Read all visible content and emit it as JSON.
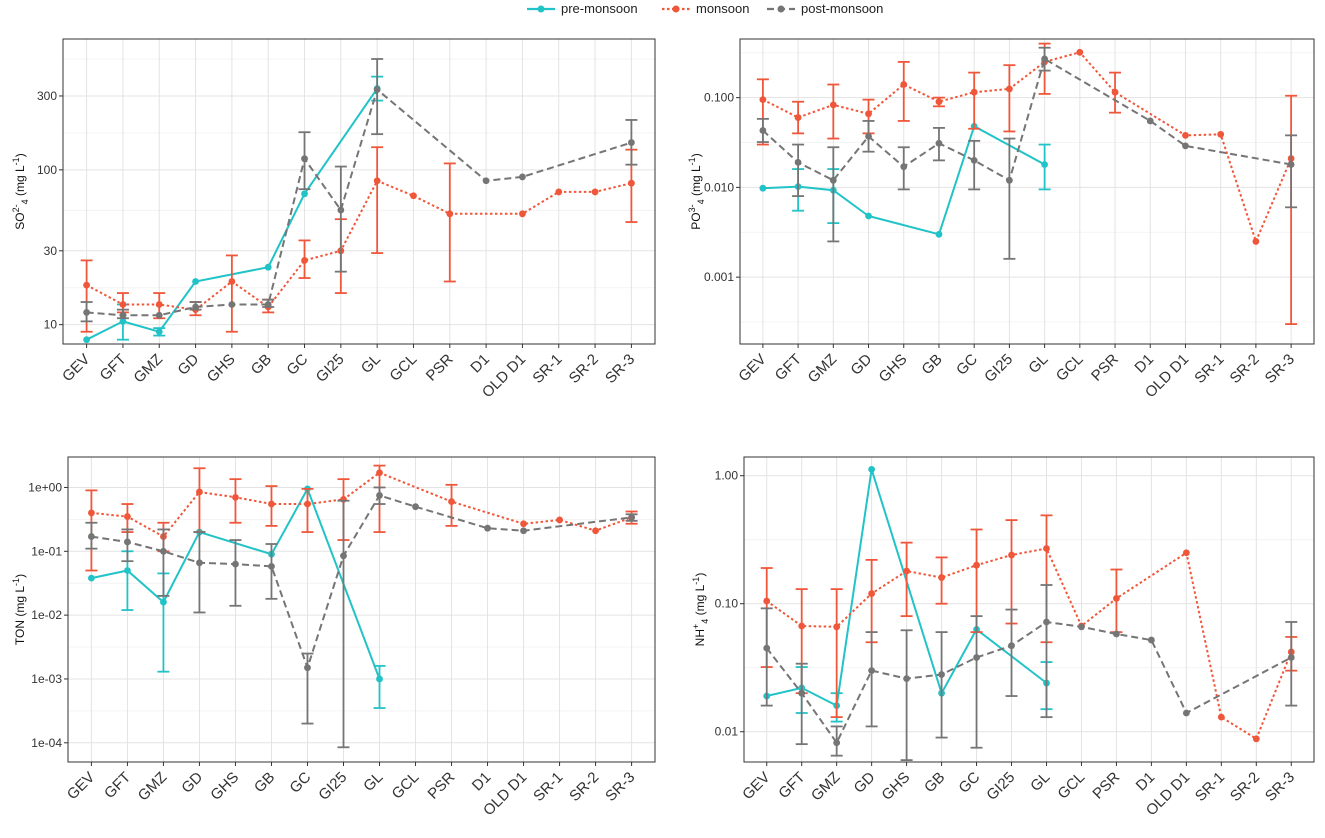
{
  "legend": {
    "series": [
      {
        "key": "pre",
        "name": "pre-monsoon",
        "color": "#22c3c7"
      },
      {
        "key": "mon",
        "name": "monsoon",
        "color": "#f0573a"
      },
      {
        "key": "post",
        "name": "post-monsoon",
        "color": "#757575"
      }
    ]
  },
  "chart_data": [
    {
      "type": "line",
      "panel": "top-left",
      "ylabel_main": "SO",
      "ylabel_sup": "2-",
      "ylabel_sub": "4",
      "ylabel_unit": " (mg L",
      "ylabel_unit_sup": "-1",
      "ylabel_end": ")",
      "yscale": "log",
      "ylim": [
        7.5,
        700
      ],
      "yticks": [
        10,
        30,
        100,
        300
      ],
      "ytick_labels": [
        "10",
        "30",
        "100",
        "300"
      ],
      "categories": [
        "GEV",
        "GFT",
        "GMZ",
        "GD",
        "GHS",
        "GB",
        "GC",
        "GI25",
        "GL",
        "GCL",
        "PSR",
        "D1",
        "OLD D1",
        "SR-1",
        "SR-2",
        "SR-3"
      ],
      "series": [
        {
          "key": "pre",
          "name": "pre-monsoon",
          "style": "solid",
          "values": [
            8,
            10.5,
            9,
            19,
            null,
            23.5,
            70,
            null,
            335,
            null,
            null,
            null,
            null,
            null,
            null,
            null
          ],
          "err": [
            null,
            [
              8,
              13.5
            ],
            [
              8.5,
              9.5
            ],
            null,
            null,
            null,
            null,
            null,
            [
              280,
              400
            ],
            null,
            null,
            null,
            null,
            null,
            null,
            null
          ]
        },
        {
          "key": "mon",
          "name": "monsoon",
          "style": "dotted",
          "values": [
            18,
            13.5,
            13.5,
            12.5,
            19,
            13,
            26,
            30,
            85,
            68,
            52,
            null,
            52,
            72,
            72,
            82
          ],
          "err": [
            [
              9,
              26
            ],
            [
              12,
              16
            ],
            [
              11,
              16
            ],
            [
              11.5,
              14
            ],
            [
              9,
              28
            ],
            [
              12,
              14.5
            ],
            [
              20,
              35
            ],
            [
              16,
              48
            ],
            [
              29,
              140
            ],
            null,
            [
              19,
              110
            ],
            null,
            null,
            null,
            null,
            [
              46,
              135
            ]
          ]
        },
        {
          "key": "post",
          "name": "post-monsoon",
          "style": "dashed",
          "values": [
            12,
            11.5,
            11.5,
            13,
            13.5,
            13.5,
            118,
            55,
            330,
            null,
            null,
            85,
            90,
            null,
            null,
            150
          ],
          "err": [
            [
              10.5,
              14
            ],
            [
              11,
              12.5
            ],
            null,
            [
              12.5,
              14
            ],
            null,
            [
              13,
              14.5
            ],
            [
              75,
              175
            ],
            [
              22,
              105
            ],
            [
              170,
              520
            ],
            null,
            null,
            null,
            null,
            null,
            null,
            [
              108,
              210
            ]
          ]
        }
      ]
    },
    {
      "type": "line",
      "panel": "top-right",
      "ylabel_main": "PO",
      "ylabel_sup": "3-",
      "ylabel_sub": "4",
      "ylabel_unit": " (mg L",
      "ylabel_unit_sup": "-1",
      "ylabel_end": ")",
      "yscale": "log",
      "ylim": [
        0.00018,
        0.45
      ],
      "yticks": [
        0.001,
        0.01,
        0.1
      ],
      "ytick_labels": [
        "0.001",
        "0.010",
        "0.100"
      ],
      "categories": [
        "GEV",
        "GFT",
        "GMZ",
        "GD",
        "GHS",
        "GB",
        "GC",
        "GI25",
        "GL",
        "GCL",
        "PSR",
        "D1",
        "OLD D1",
        "SR-1",
        "SR-2",
        "SR-3"
      ],
      "series": [
        {
          "key": "pre",
          "name": "pre-monsoon",
          "style": "solid",
          "values": [
            0.0098,
            0.0102,
            0.0093,
            0.0048,
            null,
            0.003,
            0.048,
            null,
            0.018,
            null,
            null,
            null,
            null,
            null,
            null,
            null
          ],
          "err": [
            null,
            [
              0.0055,
              0.016
            ],
            [
              0.004,
              0.016
            ],
            null,
            null,
            null,
            null,
            null,
            [
              0.0095,
              0.03
            ],
            null,
            null,
            null,
            null,
            null,
            null,
            null
          ]
        },
        {
          "key": "mon",
          "name": "monsoon",
          "style": "dotted",
          "values": [
            0.095,
            0.06,
            0.083,
            0.066,
            0.14,
            0.09,
            0.115,
            0.125,
            0.25,
            0.32,
            0.115,
            null,
            0.038,
            0.039,
            0.0025,
            0.021
          ],
          "err": [
            [
              0.03,
              0.16
            ],
            [
              0.04,
              0.09
            ],
            [
              0.035,
              0.14
            ],
            [
              0.04,
              0.095
            ],
            [
              0.055,
              0.25
            ],
            [
              0.08,
              0.1
            ],
            [
              0.045,
              0.19
            ],
            [
              0.042,
              0.23
            ],
            [
              0.11,
              0.4
            ],
            null,
            [
              0.068,
              0.19
            ],
            null,
            null,
            null,
            null,
            [
              0.0003,
              0.105
            ]
          ]
        },
        {
          "key": "post",
          "name": "post-monsoon",
          "style": "dashed",
          "values": [
            0.043,
            0.019,
            0.012,
            0.037,
            0.017,
            0.031,
            0.02,
            0.012,
            0.27,
            null,
            null,
            0.055,
            0.029,
            null,
            null,
            0.018
          ],
          "err": [
            [
              0.032,
              0.058
            ],
            [
              0.008,
              0.03
            ],
            [
              0.0025,
              0.028
            ],
            [
              0.025,
              0.055
            ],
            [
              0.0095,
              0.028
            ],
            [
              0.02,
              0.046
            ],
            [
              0.0095,
              0.033
            ],
            [
              0.0016,
              0.035
            ],
            [
              0.2,
              0.36
            ],
            null,
            null,
            null,
            null,
            null,
            null,
            [
              0.006,
              0.038
            ]
          ]
        }
      ]
    },
    {
      "type": "line",
      "panel": "bottom-left",
      "ylabel_main": "TON",
      "ylabel_sup": "",
      "ylabel_sub": "",
      "ylabel_unit": " (mg L",
      "ylabel_unit_sup": "-1",
      "ylabel_end": ")",
      "yscale": "log",
      "ylim": [
        5e-05,
        3.0
      ],
      "yticks": [
        0.0001,
        0.001,
        0.01,
        0.1,
        1
      ],
      "ytick_labels": [
        "1e-04",
        "1e-03",
        "1e-02",
        "1e-01",
        "1e+00"
      ],
      "categories": [
        "GEV",
        "GFT",
        "GMZ",
        "GD",
        "GHS",
        "GB",
        "GC",
        "GI25",
        "GL",
        "GCL",
        "PSR",
        "D1",
        "OLD D1",
        "SR-1",
        "SR-2",
        "SR-3"
      ],
      "series": [
        {
          "key": "pre",
          "name": "pre-monsoon",
          "style": "solid",
          "values": [
            0.038,
            0.05,
            0.016,
            0.2,
            null,
            0.09,
            0.95,
            null,
            0.001,
            null,
            null,
            null,
            null,
            null,
            null,
            null
          ],
          "err": [
            null,
            [
              0.012,
              0.1
            ],
            [
              0.0013,
              0.045
            ],
            null,
            null,
            null,
            null,
            null,
            [
              0.00035,
              0.0016
            ],
            null,
            null,
            null,
            null,
            null,
            null,
            null
          ]
        },
        {
          "key": "mon",
          "name": "monsoon",
          "style": "dotted",
          "values": [
            0.4,
            0.35,
            0.17,
            0.85,
            0.7,
            0.55,
            0.55,
            0.65,
            1.7,
            null,
            0.6,
            null,
            0.27,
            0.31,
            0.21,
            0.34
          ],
          "err": [
            [
              0.05,
              0.9
            ],
            [
              0.2,
              0.55
            ],
            [
              0.1,
              0.28
            ],
            [
              0.2,
              2.0
            ],
            [
              0.28,
              1.35
            ],
            [
              0.25,
              1.05
            ],
            [
              0.2,
              0.95
            ],
            [
              0.15,
              1.35
            ],
            [
              0.2,
              2.2
            ],
            null,
            [
              0.25,
              1.1
            ],
            null,
            null,
            null,
            null,
            [
              0.27,
              0.42
            ]
          ]
        },
        {
          "key": "post",
          "name": "post-monsoon",
          "style": "dashed",
          "values": [
            0.17,
            0.14,
            0.1,
            0.066,
            0.063,
            0.058,
            0.0015,
            0.085,
            0.75,
            0.5,
            null,
            0.23,
            0.21,
            null,
            null,
            0.34
          ],
          "err": [
            [
              0.11,
              0.28
            ],
            [
              0.07,
              0.22
            ],
            [
              0.02,
              0.22
            ],
            [
              0.011,
              0.2
            ],
            [
              0.014,
              0.15
            ],
            [
              0.018,
              0.13
            ],
            [
              0.0002,
              0.0025
            ],
            [
              8.5e-05,
              0.62
            ],
            [
              0.55,
              1.0
            ],
            null,
            null,
            null,
            null,
            null,
            null,
            [
              0.3,
              0.38
            ]
          ]
        }
      ]
    },
    {
      "type": "line",
      "panel": "bottom-right",
      "ylabel_main": "NH",
      "ylabel_sup": "+",
      "ylabel_sub": "4",
      "ylabel_unit": " (mg L",
      "ylabel_unit_sup": "-1",
      "ylabel_end": ")",
      "yscale": "log",
      "ylim": [
        0.0058,
        1.4
      ],
      "yticks": [
        0.01,
        0.1,
        1
      ],
      "ytick_labels": [
        "0.01",
        "0.10",
        "1.00"
      ],
      "categories": [
        "GEV",
        "GFT",
        "GMZ",
        "GD",
        "GHS",
        "GB",
        "GC",
        "GI25",
        "GL",
        "GCL",
        "PSR",
        "D1",
        "OLD D1",
        "SR-1",
        "SR-2",
        "SR-3"
      ],
      "series": [
        {
          "key": "pre",
          "name": "pre-monsoon",
          "style": "solid",
          "values": [
            0.019,
            0.022,
            0.016,
            1.12,
            null,
            0.02,
            0.063,
            null,
            0.024,
            null,
            null,
            null,
            null,
            null,
            null,
            null
          ],
          "err": [
            null,
            [
              0.014,
              0.032
            ],
            [
              0.012,
              0.02
            ],
            null,
            null,
            null,
            null,
            null,
            [
              0.015,
              0.035
            ],
            null,
            null,
            null,
            null,
            null,
            null,
            null
          ]
        },
        {
          "key": "mon",
          "name": "monsoon",
          "style": "dotted",
          "values": [
            0.105,
            0.067,
            0.066,
            0.12,
            0.18,
            0.16,
            0.2,
            0.24,
            0.27,
            0.067,
            0.11,
            null,
            0.25,
            0.013,
            0.0088,
            0.042
          ],
          "err": [
            [
              0.032,
              0.19
            ],
            [
              0.02,
              0.13
            ],
            [
              0.013,
              0.13
            ],
            [
              0.05,
              0.22
            ],
            [
              0.08,
              0.3
            ],
            [
              0.1,
              0.23
            ],
            [
              0.06,
              0.38
            ],
            [
              0.07,
              0.45
            ],
            [
              0.05,
              0.49
            ],
            null,
            [
              0.06,
              0.185
            ],
            null,
            null,
            null,
            null,
            [
              0.03,
              0.055
            ]
          ]
        },
        {
          "key": "post",
          "name": "post-monsoon",
          "style": "dashed",
          "values": [
            0.045,
            0.02,
            0.0082,
            0.03,
            0.026,
            0.028,
            0.038,
            0.047,
            0.072,
            0.066,
            0.058,
            0.052,
            0.014,
            null,
            null,
            0.038
          ],
          "err": [
            [
              0.016,
              0.092
            ],
            [
              0.008,
              0.034
            ],
            [
              0.0065,
              0.011
            ],
            [
              0.011,
              0.06
            ],
            [
              0.006,
              0.062
            ],
            [
              0.009,
              0.06
            ],
            [
              0.0075,
              0.08
            ],
            [
              0.019,
              0.09
            ],
            [
              0.013,
              0.14
            ],
            null,
            null,
            null,
            null,
            null,
            null,
            [
              0.016,
              0.072
            ]
          ]
        }
      ]
    }
  ]
}
